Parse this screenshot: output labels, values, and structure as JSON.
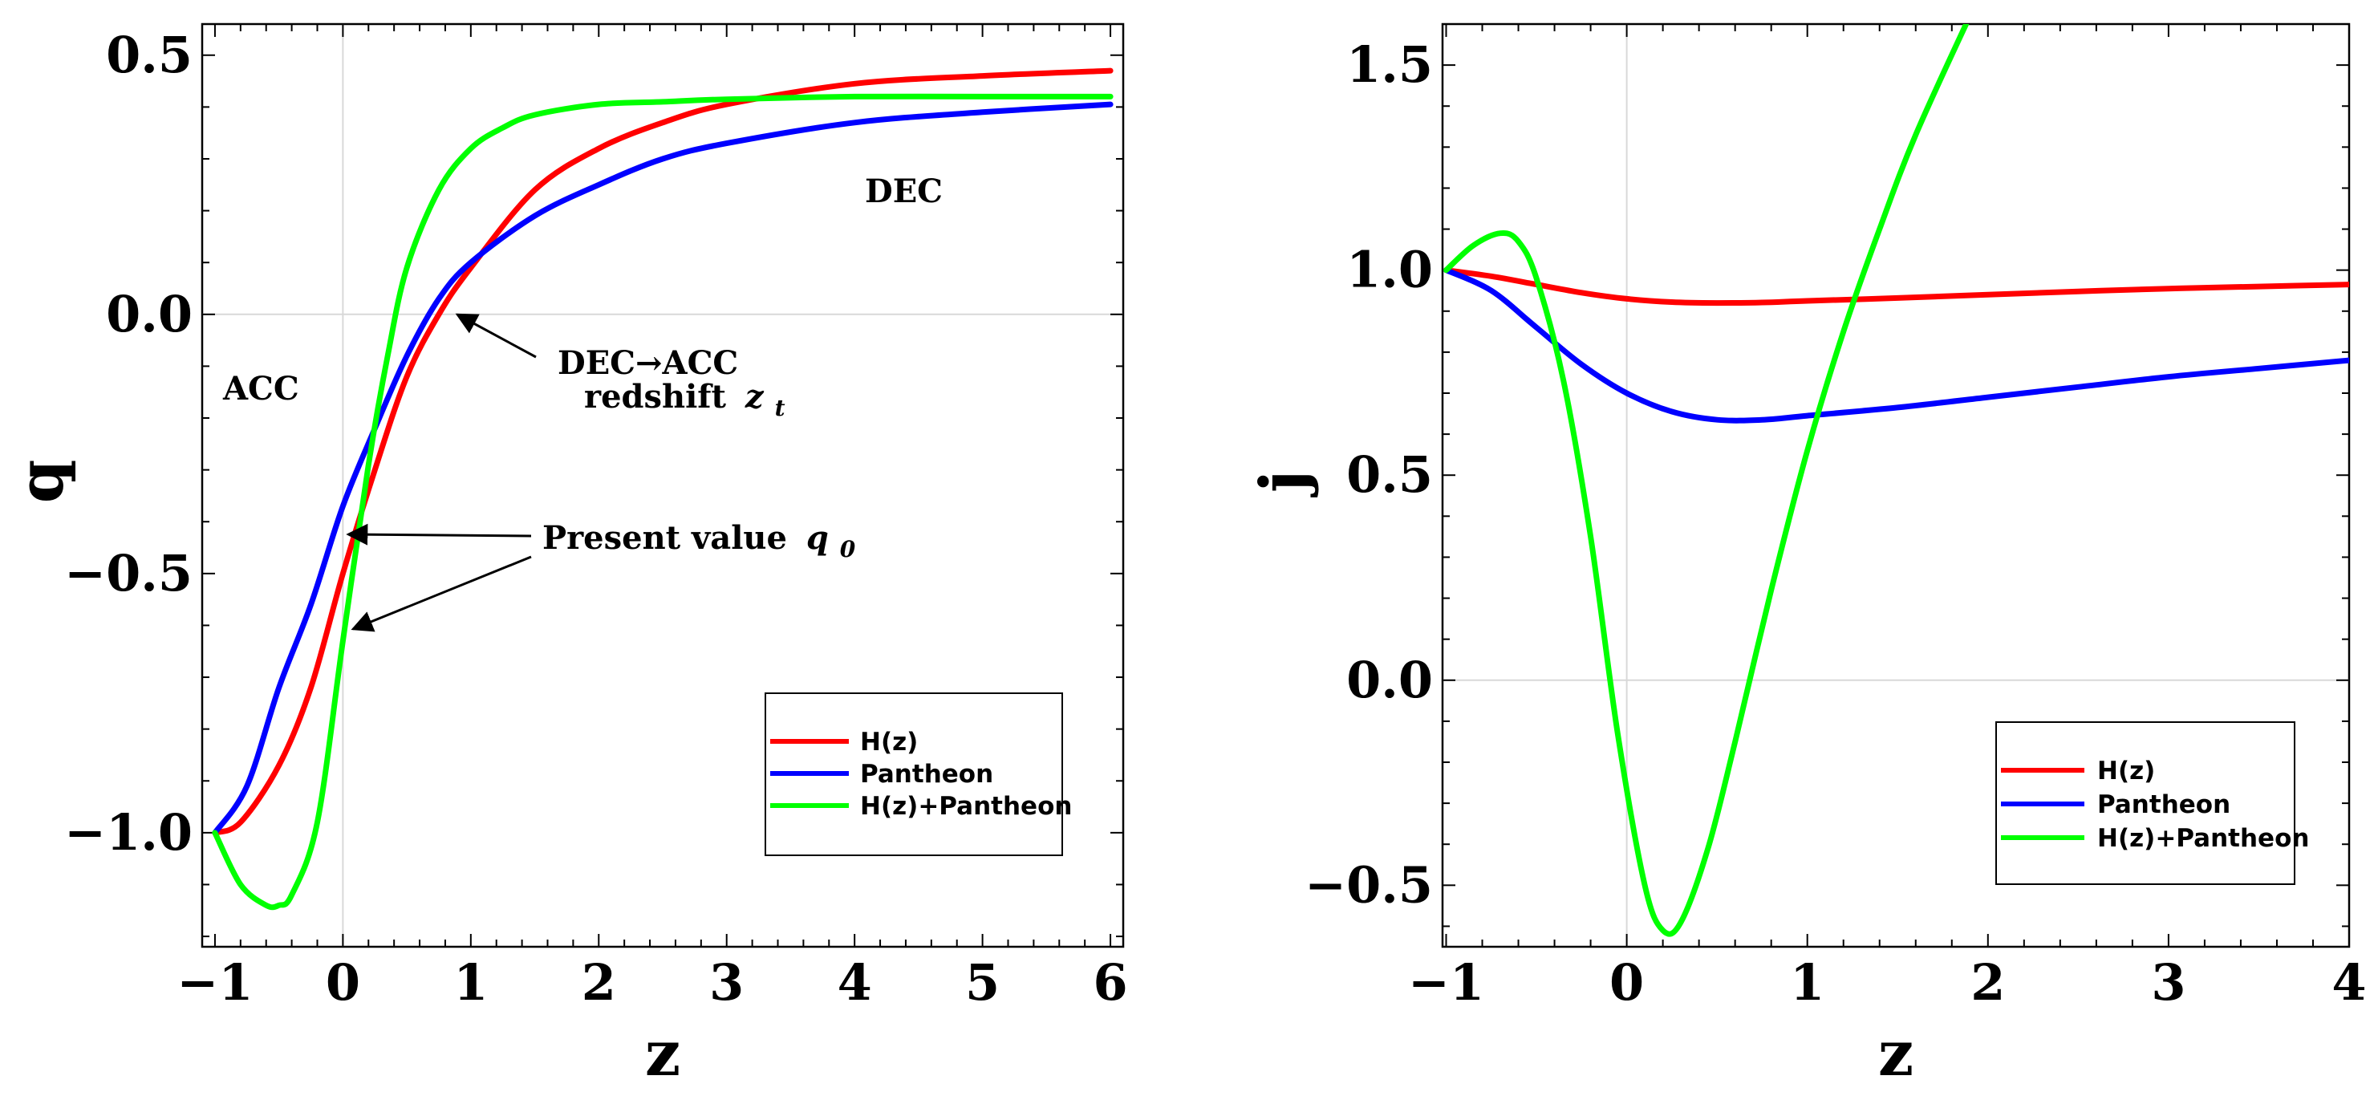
{
  "chart_data": [
    {
      "type": "line",
      "title": "",
      "xlabel": "z",
      "ylabel": "q",
      "xlim": [
        -1.1,
        6.1
      ],
      "ylim": [
        -1.22,
        0.56
      ],
      "xticks": [
        -1,
        0,
        1,
        2,
        3,
        4,
        5,
        6
      ],
      "xtick_labels": [
        "−1",
        "0",
        "1",
        "2",
        "3",
        "4",
        "5",
        "6"
      ],
      "yticks": [
        -1.0,
        -0.5,
        0.0,
        0.5
      ],
      "ytick_labels": [
        "−1.0",
        "−0.5",
        "0.0",
        "0.5"
      ],
      "grid": false,
      "legend_position": "bottom-right",
      "series": [
        {
          "name": "H(z)",
          "color": "#ff0000",
          "x": [
            -1,
            -0.8,
            -0.5,
            -0.25,
            0,
            0.25,
            0.5,
            0.75,
            1,
            1.5,
            2,
            2.5,
            3,
            4,
            5,
            6
          ],
          "y": [
            -1.0,
            -0.98,
            -0.87,
            -0.72,
            -0.5,
            -0.3,
            -0.12,
            0.0,
            0.09,
            0.24,
            0.32,
            0.37,
            0.405,
            0.445,
            0.46,
            0.47
          ]
        },
        {
          "name": "Pantheon",
          "color": "#0000ff",
          "x": [
            -1,
            -0.75,
            -0.5,
            -0.25,
            0,
            0.25,
            0.5,
            0.75,
            1,
            1.5,
            2,
            2.5,
            3,
            4,
            5,
            6
          ],
          "y": [
            -1.0,
            -0.91,
            -0.72,
            -0.56,
            -0.37,
            -0.22,
            -0.08,
            0.03,
            0.1,
            0.19,
            0.25,
            0.3,
            0.33,
            0.37,
            0.39,
            0.405
          ]
        },
        {
          "name": "H(z)+Pantheon",
          "color": "#00ff00",
          "x": [
            -1,
            -0.8,
            -0.6,
            -0.5,
            -0.4,
            -0.2,
            0,
            0.2,
            0.35,
            0.5,
            0.75,
            1,
            1.25,
            1.5,
            2,
            2.5,
            3,
            4,
            5,
            6
          ],
          "y": [
            -1.0,
            -1.1,
            -1.14,
            -1.14,
            -1.12,
            -0.98,
            -0.63,
            -0.29,
            -0.08,
            0.09,
            0.24,
            0.32,
            0.36,
            0.385,
            0.405,
            0.41,
            0.415,
            0.42,
            0.42,
            0.42
          ]
        }
      ],
      "annotations": [
        {
          "text": "ACC",
          "x": -1.0,
          "y": -0.16
        },
        {
          "text": "DEC",
          "x": 4.1,
          "y": 0.23
        },
        {
          "text": "DEC→ACC",
          "x": 2.3,
          "y": -0.11
        },
        {
          "text": "redshift",
          "italic_part": "z",
          "subscript": "t",
          "x": 2.2,
          "y": -0.19
        },
        {
          "text": "Present value",
          "italic_part": "q",
          "subscript": "0",
          "x": 1.55,
          "y": -0.46
        }
      ]
    },
    {
      "type": "line",
      "title": "",
      "xlabel": "z",
      "ylabel": "j",
      "xlim": [
        -1.02,
        4.0
      ],
      "ylim": [
        -0.65,
        1.6
      ],
      "xticks": [
        -1,
        0,
        1,
        2,
        3,
        4
      ],
      "xtick_labels": [
        "−1",
        "0",
        "1",
        "2",
        "3",
        "4"
      ],
      "yticks": [
        -0.5,
        0.0,
        0.5,
        1.0,
        1.5
      ],
      "ytick_labels": [
        "−0.5",
        "0.0",
        "0.5",
        "1.0",
        "1.5"
      ],
      "grid": false,
      "legend_position": "bottom-right",
      "series": [
        {
          "name": "H(z)",
          "color": "#ff0000",
          "x": [
            -1,
            -0.75,
            -0.5,
            -0.25,
            0,
            0.25,
            0.5,
            0.75,
            1,
            1.5,
            2,
            2.5,
            3,
            3.5,
            4
          ],
          "y": [
            1.0,
            0.985,
            0.965,
            0.945,
            0.93,
            0.922,
            0.92,
            0.921,
            0.925,
            0.932,
            0.94,
            0.948,
            0.955,
            0.96,
            0.965
          ]
        },
        {
          "name": "Pantheon",
          "color": "#0000ff",
          "x": [
            -1,
            -0.75,
            -0.5,
            -0.25,
            0,
            0.25,
            0.5,
            0.75,
            1,
            1.5,
            2,
            2.5,
            3,
            3.5,
            4
          ],
          "y": [
            1.0,
            0.95,
            0.86,
            0.77,
            0.7,
            0.655,
            0.635,
            0.635,
            0.645,
            0.665,
            0.69,
            0.715,
            0.74,
            0.76,
            0.78
          ]
        },
        {
          "name": "H(z)+Pantheon",
          "color": "#00ff00",
          "x": [
            -1,
            -0.85,
            -0.7,
            -0.6,
            -0.5,
            -0.35,
            -0.2,
            -0.05,
            0.1,
            0.2,
            0.3,
            0.45,
            0.6,
            0.8,
            1,
            1.2,
            1.4,
            1.6,
            1.9
          ],
          "y": [
            1.0,
            1.06,
            1.09,
            1.07,
            0.98,
            0.73,
            0.35,
            -0.13,
            -0.5,
            -0.61,
            -0.59,
            -0.41,
            -0.15,
            0.22,
            0.56,
            0.85,
            1.1,
            1.33,
            1.62
          ]
        }
      ]
    }
  ]
}
